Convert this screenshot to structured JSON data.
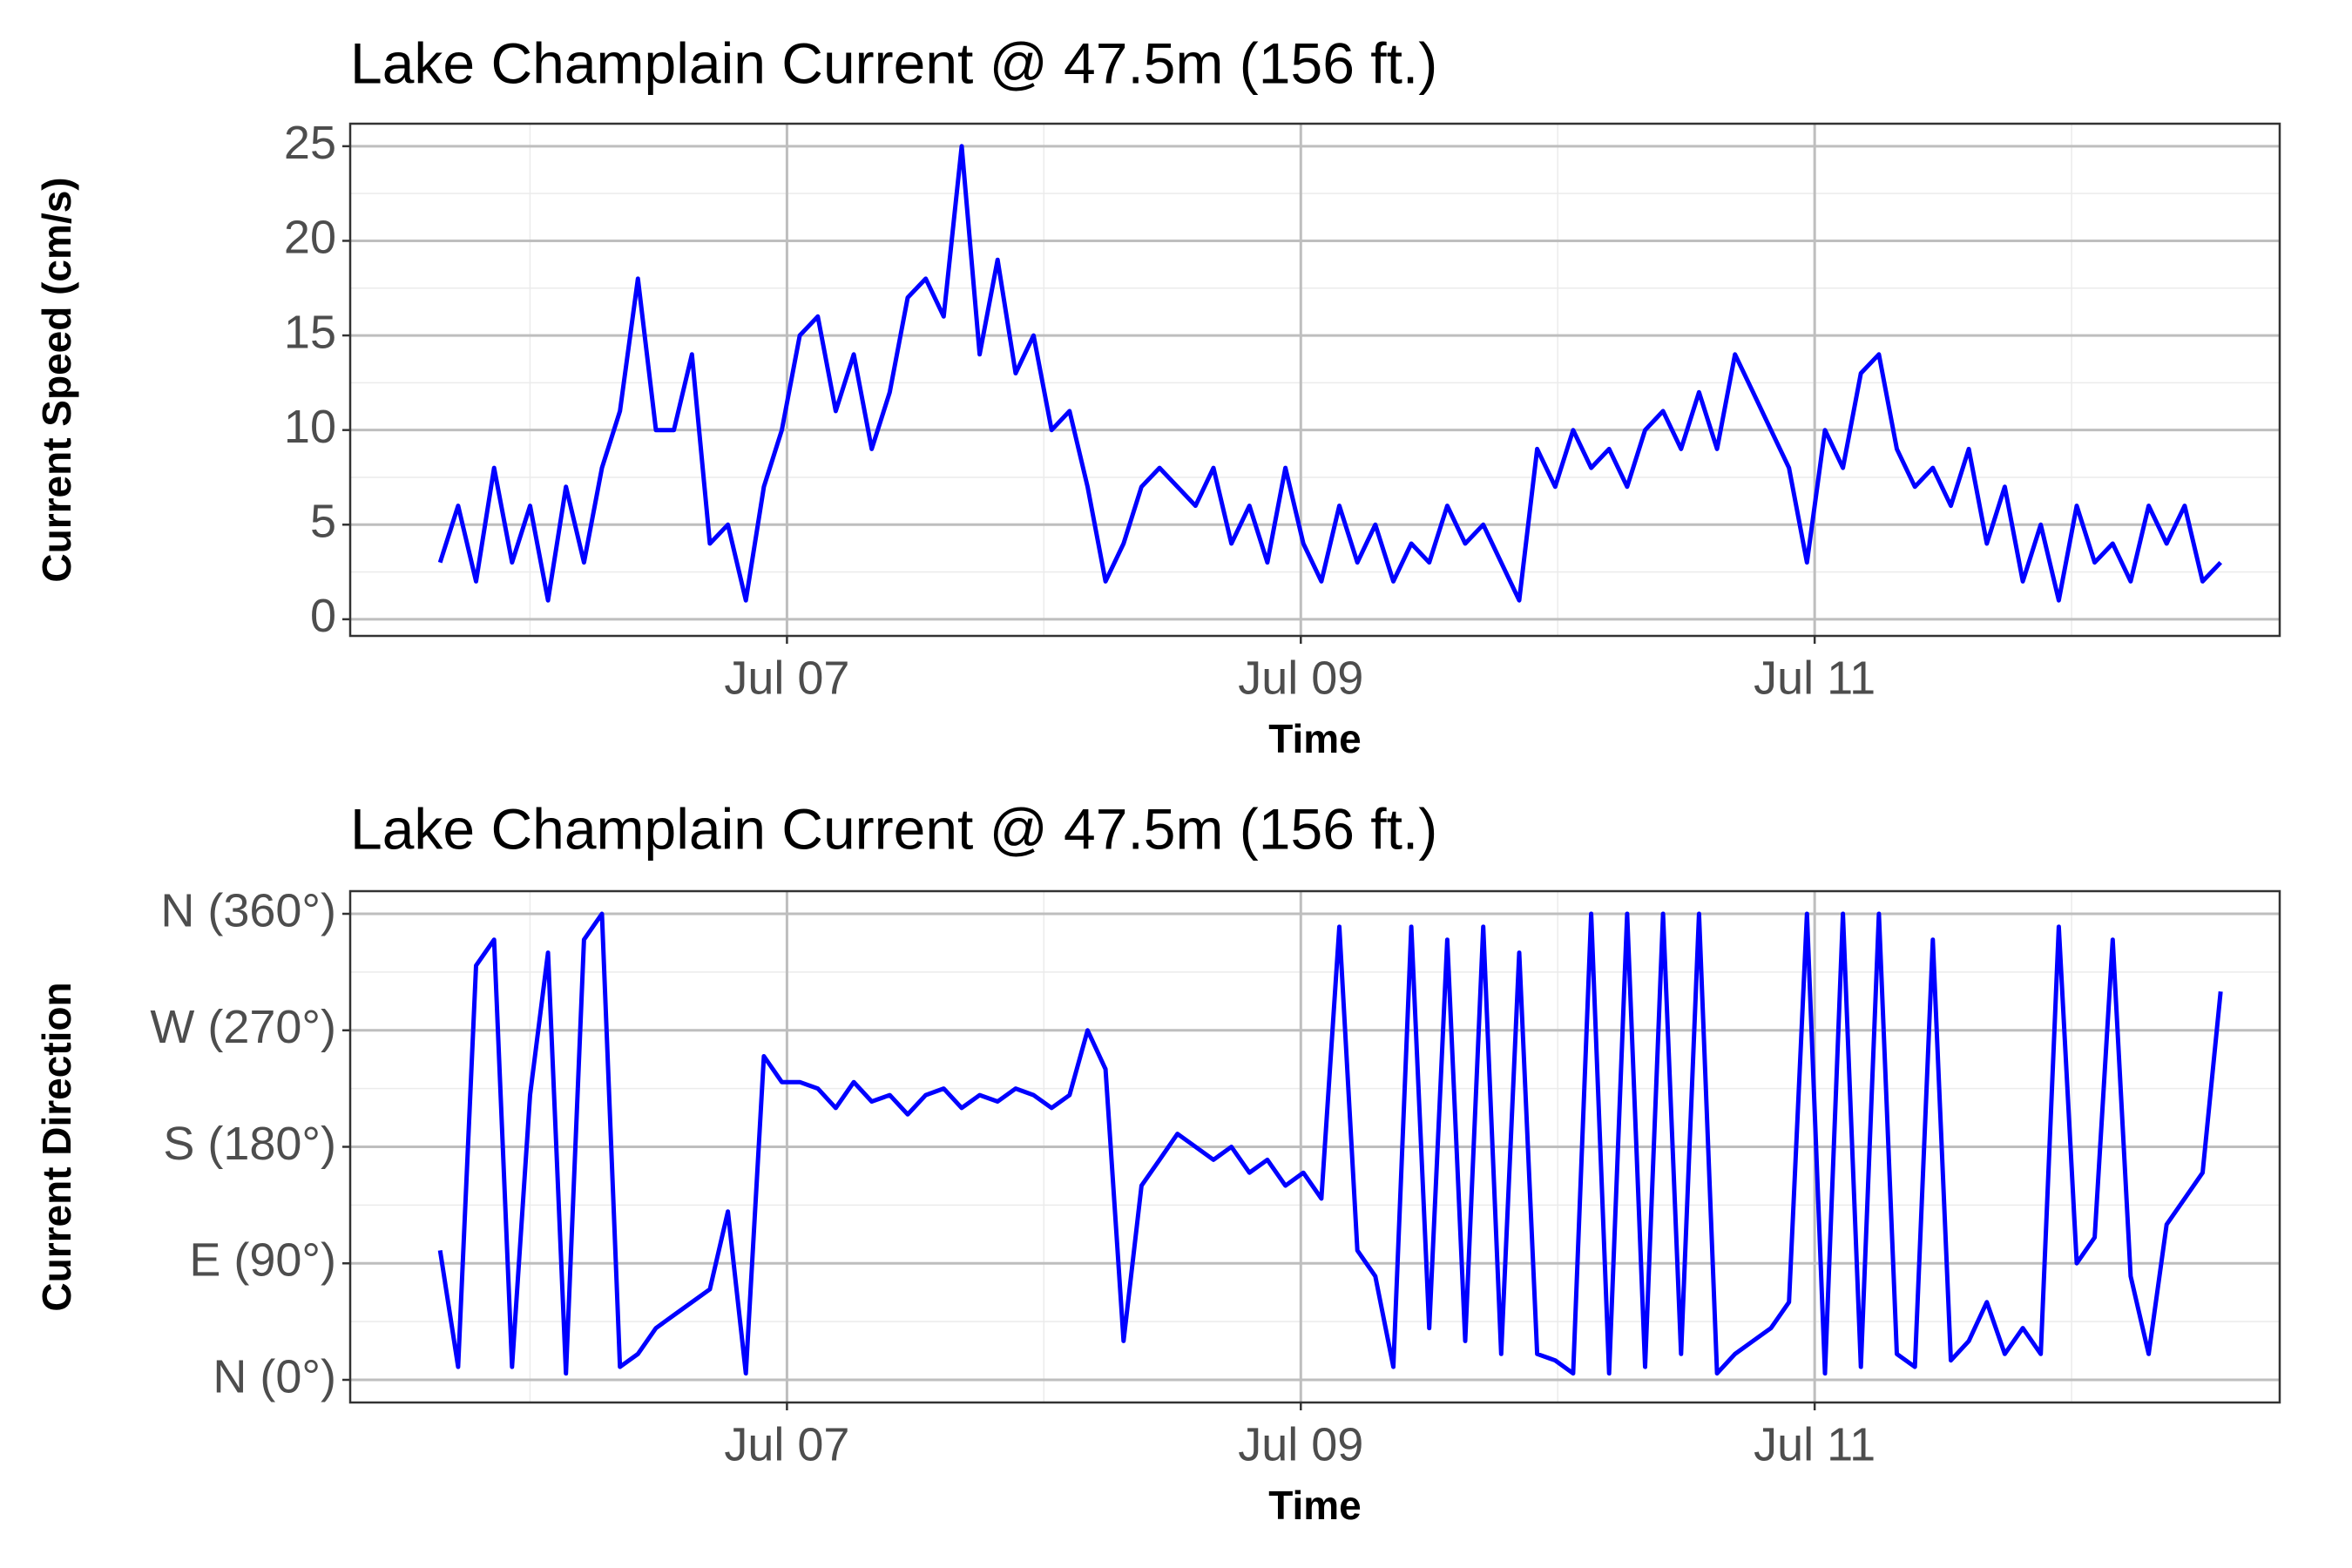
{
  "chart_data": [
    {
      "type": "line",
      "title": "Lake Champlain Current @ 47.5m (156 ft.)",
      "x_label": "Time",
      "y_label": "Current Speed (cm/s)",
      "x": [
        5.65,
        5.72,
        5.79,
        5.86,
        5.93,
        6.0,
        6.07,
        6.14,
        6.21,
        6.28,
        6.35,
        6.42,
        6.49,
        6.56,
        6.63,
        6.7,
        6.77,
        6.84,
        6.91,
        6.98,
        7.05,
        7.12,
        7.19,
        7.26,
        7.33,
        7.4,
        7.47,
        7.54,
        7.61,
        7.68,
        7.75,
        7.82,
        7.89,
        7.96,
        8.03,
        8.1,
        8.17,
        8.24,
        8.31,
        8.38,
        8.45,
        8.52,
        8.59,
        8.66,
        8.73,
        8.8,
        8.87,
        8.94,
        9.01,
        9.08,
        9.15,
        9.22,
        9.29,
        9.36,
        9.43,
        9.5,
        9.57,
        9.64,
        9.71,
        9.78,
        9.85,
        9.92,
        9.99,
        10.06,
        10.13,
        10.2,
        10.27,
        10.34,
        10.41,
        10.48,
        10.55,
        10.62,
        10.69,
        10.76,
        10.83,
        10.9,
        10.97,
        11.04,
        11.11,
        11.18,
        11.25,
        11.32,
        11.39,
        11.46,
        11.53,
        11.6,
        11.67,
        11.74,
        11.81,
        11.88,
        11.95,
        12.02,
        12.09,
        12.16,
        12.23,
        12.3,
        12.37,
        12.44,
        12.51,
        12.58
      ],
      "values": [
        3,
        6,
        2,
        8,
        3,
        6,
        1,
        7,
        3,
        8,
        11,
        18,
        10,
        10,
        14,
        4,
        5,
        1,
        7,
        10,
        15,
        16,
        11,
        14,
        9,
        12,
        17,
        18,
        16,
        25,
        14,
        19,
        13,
        15,
        10,
        11,
        7,
        2,
        4,
        7,
        8,
        7,
        6,
        8,
        4,
        6,
        3,
        8,
        4,
        2,
        6,
        3,
        5,
        2,
        4,
        3,
        6,
        4,
        5,
        3,
        1,
        9,
        7,
        10,
        8,
        9,
        7,
        10,
        11,
        9,
        12,
        9,
        14,
        12,
        10,
        8,
        3,
        10,
        8,
        13,
        14,
        9,
        7,
        8,
        6,
        9,
        4,
        7,
        2,
        5,
        1,
        6,
        3,
        4,
        2,
        6,
        4,
        6,
        2,
        3
      ],
      "color": "#0000ff",
      "grid": true,
      "xlim": [
        5.3,
        12.81
      ],
      "xticks": [
        {
          "value": 7,
          "label": "Jul 07"
        },
        {
          "value": 9,
          "label": "Jul 09"
        },
        {
          "value": 11,
          "label": "Jul 11"
        }
      ],
      "ylim": [
        -0.88,
        26.19
      ],
      "yticks": [
        0,
        5,
        10,
        15,
        20,
        25
      ]
    },
    {
      "type": "line",
      "title": "Lake Champlain Current @ 47.5m (156 ft.)",
      "x_label": "Time",
      "y_label": "Current Direction",
      "x": [
        5.65,
        5.72,
        5.79,
        5.86,
        5.93,
        6.0,
        6.07,
        6.14,
        6.21,
        6.28,
        6.35,
        6.42,
        6.49,
        6.56,
        6.63,
        6.7,
        6.77,
        6.84,
        6.91,
        6.98,
        7.05,
        7.12,
        7.19,
        7.26,
        7.33,
        7.4,
        7.47,
        7.54,
        7.61,
        7.68,
        7.75,
        7.82,
        7.89,
        7.96,
        8.03,
        8.1,
        8.17,
        8.24,
        8.31,
        8.38,
        8.45,
        8.52,
        8.59,
        8.66,
        8.73,
        8.8,
        8.87,
        8.94,
        9.01,
        9.08,
        9.15,
        9.22,
        9.29,
        9.36,
        9.43,
        9.5,
        9.57,
        9.64,
        9.71,
        9.78,
        9.85,
        9.92,
        9.99,
        10.06,
        10.13,
        10.2,
        10.27,
        10.34,
        10.41,
        10.48,
        10.55,
        10.62,
        10.69,
        10.76,
        10.83,
        10.9,
        10.97,
        11.04,
        11.11,
        11.18,
        11.25,
        11.32,
        11.39,
        11.46,
        11.53,
        11.6,
        11.67,
        11.74,
        11.81,
        11.88,
        11.95,
        12.02,
        12.09,
        12.16,
        12.23,
        12.3,
        12.37,
        12.44,
        12.51,
        12.58
      ],
      "values": [
        100,
        10,
        320,
        340,
        10,
        220,
        330,
        5,
        340,
        360,
        10,
        20,
        40,
        50,
        60,
        70,
        130,
        5,
        250,
        230,
        230,
        225,
        210,
        230,
        215,
        220,
        205,
        220,
        225,
        210,
        220,
        215,
        225,
        220,
        210,
        220,
        270,
        240,
        30,
        150,
        170,
        190,
        180,
        170,
        180,
        160,
        170,
        150,
        160,
        140,
        350,
        100,
        80,
        10,
        350,
        40,
        340,
        30,
        350,
        20,
        330,
        20,
        15,
        5,
        360,
        5,
        360,
        10,
        360,
        20,
        360,
        5,
        20,
        30,
        40,
        60,
        360,
        5,
        360,
        10,
        360,
        20,
        10,
        340,
        15,
        30,
        60,
        20,
        40,
        20,
        350,
        90,
        110,
        340,
        80,
        20,
        120,
        140,
        160,
        300
      ],
      "color": "#0000ff",
      "grid": true,
      "xlim": [
        5.3,
        12.81
      ],
      "xticks": [
        {
          "value": 7,
          "label": "Jul 07"
        },
        {
          "value": 9,
          "label": "Jul 09"
        },
        {
          "value": 11,
          "label": "Jul 11"
        }
      ],
      "ylim": [
        -17.5,
        377.5
      ],
      "yticks": [
        {
          "value": 0,
          "label": "N (0°)"
        },
        {
          "value": 90,
          "label": "E (90°)"
        },
        {
          "value": 180,
          "label": "S (180°)"
        },
        {
          "value": 270,
          "label": "W (270°)"
        },
        {
          "value": 360,
          "label": "N (360°)"
        }
      ]
    }
  ]
}
